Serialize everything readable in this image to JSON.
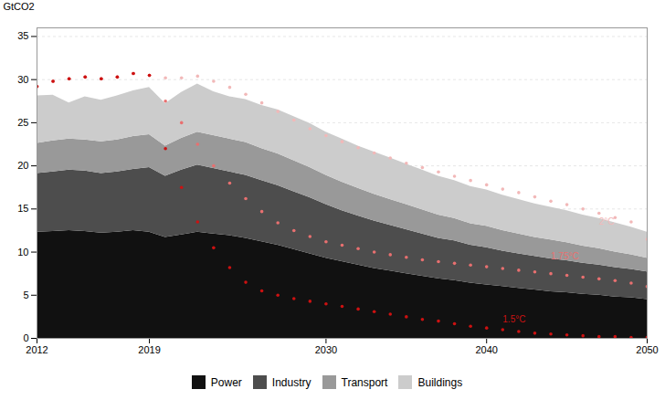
{
  "chart_data": {
    "type": "area",
    "stacked": true,
    "x": [
      2012,
      2013,
      2014,
      2015,
      2016,
      2017,
      2018,
      2019,
      2020,
      2021,
      2022,
      2023,
      2024,
      2025,
      2026,
      2027,
      2028,
      2029,
      2030,
      2031,
      2032,
      2033,
      2034,
      2035,
      2036,
      2037,
      2038,
      2039,
      2040,
      2041,
      2042,
      2043,
      2044,
      2045,
      2046,
      2047,
      2048,
      2049,
      2050
    ],
    "series": [
      {
        "name": "Power",
        "type": "area",
        "color": "#111111",
        "values": [
          12.3,
          12.4,
          12.5,
          12.4,
          12.2,
          12.3,
          12.5,
          12.3,
          11.7,
          12.0,
          12.3,
          12.1,
          11.9,
          11.6,
          11.2,
          10.8,
          10.3,
          9.8,
          9.3,
          8.9,
          8.5,
          8.1,
          7.8,
          7.5,
          7.2,
          6.9,
          6.7,
          6.4,
          6.2,
          6.0,
          5.8,
          5.6,
          5.4,
          5.3,
          5.1,
          5.0,
          4.8,
          4.7,
          4.5
        ]
      },
      {
        "name": "Industry",
        "type": "area",
        "color": "#4d4d4d",
        "values": [
          6.8,
          6.9,
          7.0,
          7.0,
          6.9,
          7.0,
          7.1,
          7.5,
          7.1,
          7.5,
          7.8,
          7.6,
          7.4,
          7.3,
          7.1,
          6.9,
          6.7,
          6.5,
          6.2,
          5.9,
          5.7,
          5.5,
          5.3,
          5.1,
          4.9,
          4.7,
          4.6,
          4.4,
          4.3,
          4.1,
          4.0,
          3.9,
          3.8,
          3.7,
          3.6,
          3.5,
          3.4,
          3.3,
          3.2
        ]
      },
      {
        "name": "Transport",
        "type": "area",
        "color": "#999999",
        "values": [
          3.5,
          3.6,
          3.6,
          3.6,
          3.7,
          3.7,
          3.8,
          3.8,
          3.5,
          3.7,
          3.8,
          3.8,
          3.8,
          3.8,
          3.7,
          3.7,
          3.6,
          3.5,
          3.4,
          3.3,
          3.2,
          3.1,
          3.0,
          2.9,
          2.8,
          2.7,
          2.6,
          2.5,
          2.5,
          2.4,
          2.3,
          2.2,
          2.2,
          2.1,
          2.0,
          1.9,
          1.8,
          1.7,
          1.6
        ]
      },
      {
        "name": "Buildings",
        "type": "area",
        "color": "#cccccc",
        "values": [
          5.5,
          5.3,
          4.2,
          5.0,
          4.8,
          5.1,
          5.3,
          5.5,
          4.9,
          5.3,
          5.6,
          5.1,
          4.9,
          5.0,
          5.0,
          5.1,
          5.1,
          5.1,
          5.0,
          5.0,
          4.9,
          4.9,
          4.8,
          4.7,
          4.6,
          4.5,
          4.4,
          4.3,
          4.2,
          4.1,
          4.0,
          3.9,
          3.8,
          3.7,
          3.6,
          3.5,
          3.4,
          3.2,
          3.0
        ]
      },
      {
        "name": "2°C",
        "type": "scatter",
        "marker": "circle",
        "color": "#f2b8b8",
        "values": [
          29.2,
          29.8,
          30.1,
          30.3,
          30.1,
          30.3,
          30.7,
          30.5,
          30.2,
          30.2,
          30.4,
          29.8,
          29.1,
          28.3,
          27.3,
          26.3,
          25.3,
          24.3,
          23.5,
          22.8,
          22.1,
          21.5,
          20.9,
          20.3,
          19.8,
          19.3,
          18.8,
          18.3,
          17.8,
          17.3,
          16.9,
          16.4,
          15.9,
          15.5,
          15.0,
          14.5,
          14.0,
          13.5,
          11.5
        ]
      },
      {
        "name": "1.75°C",
        "type": "scatter",
        "marker": "circle",
        "color": "#e87070",
        "values": [
          29.2,
          29.8,
          30.1,
          30.3,
          30.1,
          30.3,
          30.7,
          30.5,
          27.5,
          25.0,
          22.5,
          20.0,
          18.0,
          16.2,
          14.7,
          13.4,
          12.5,
          11.8,
          11.2,
          10.8,
          10.4,
          10.0,
          9.7,
          9.4,
          9.1,
          8.9,
          8.7,
          8.5,
          8.3,
          8.1,
          7.9,
          7.7,
          7.5,
          7.3,
          7.1,
          6.9,
          6.7,
          6.4,
          6.0
        ]
      },
      {
        "name": "1.5°C",
        "type": "scatter",
        "marker": "circle",
        "color": "#cc1111",
        "values": [
          29.2,
          29.8,
          30.1,
          30.3,
          30.1,
          30.3,
          30.7,
          30.5,
          22.0,
          17.5,
          13.5,
          10.5,
          8.2,
          6.5,
          5.5,
          5.0,
          4.6,
          4.3,
          4.0,
          3.7,
          3.4,
          3.1,
          2.8,
          2.5,
          2.2,
          2.0,
          1.7,
          1.4,
          1.2,
          1.0,
          0.8,
          0.6,
          0.5,
          0.4,
          0.3,
          0.2,
          0.2,
          0.1,
          0.1
        ]
      }
    ],
    "annotations": [
      {
        "text": "2°C",
        "x": 2047,
        "y": 13.5,
        "color": "#f2b8b8"
      },
      {
        "text": "1.75°C",
        "x": 2044,
        "y": 9.5,
        "color": "#e87070"
      },
      {
        "text": "1.5°C",
        "x": 2041,
        "y": 2.2,
        "color": "#cc1111"
      }
    ],
    "ylabel": "GtCO2",
    "xlim": [
      2012,
      2050
    ],
    "xticks": [
      2012,
      2019,
      2030,
      2040,
      2050
    ],
    "ylim": [
      0,
      36
    ],
    "yticks": [
      0,
      5,
      10,
      15,
      20,
      25,
      30,
      35
    ],
    "grid": true,
    "legend": "bottom"
  }
}
